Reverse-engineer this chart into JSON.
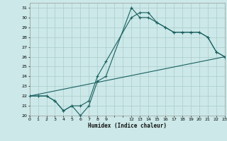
{
  "xlabel": "Humidex (Indice chaleur)",
  "background_color": "#cce8e8",
  "grid_color": "#aacccc",
  "line_color": "#1a6060",
  "xlim": [
    0,
    23
  ],
  "ylim": [
    20,
    31.5
  ],
  "yticks": [
    20,
    21,
    22,
    23,
    24,
    25,
    26,
    27,
    28,
    29,
    30,
    31
  ],
  "xticks": [
    0,
    1,
    2,
    3,
    4,
    5,
    6,
    7,
    8,
    9,
    10,
    11,
    12,
    13,
    14,
    15,
    16,
    17,
    18,
    19,
    20,
    21,
    22,
    23
  ],
  "xticklabels": [
    "0",
    "1",
    "2",
    "3",
    "4",
    "5",
    "6",
    "7",
    "8",
    "9",
    "",
    "",
    "12",
    "13",
    "14",
    "15",
    "16",
    "17",
    "18",
    "19",
    "20",
    "21",
    "22",
    "23"
  ],
  "line1_x": [
    0,
    1,
    2,
    3,
    4,
    5,
    6,
    7,
    8,
    9,
    12,
    13,
    14,
    15,
    16,
    17,
    18,
    19,
    20,
    21,
    22,
    23
  ],
  "line1_y": [
    22,
    22,
    22,
    21.5,
    20.5,
    21.0,
    21.0,
    21.5,
    24.0,
    25.5,
    30.0,
    30.5,
    30.5,
    29.5,
    29.0,
    28.5,
    28.5,
    28.5,
    28.5,
    28.0,
    26.5,
    26.0
  ],
  "line2_x": [
    0,
    1,
    2,
    3,
    4,
    5,
    6,
    7,
    8,
    9,
    12,
    13,
    14,
    15,
    16,
    17,
    18,
    19,
    20,
    21,
    22,
    23
  ],
  "line2_y": [
    22,
    22,
    22,
    21.5,
    20.5,
    21.0,
    20.0,
    21.0,
    23.5,
    24.0,
    31.0,
    30.0,
    30.0,
    29.5,
    29.0,
    28.5,
    28.5,
    28.5,
    28.5,
    28.0,
    26.5,
    26.0
  ],
  "line3_x": [
    0,
    23
  ],
  "line3_y": [
    22,
    26
  ]
}
